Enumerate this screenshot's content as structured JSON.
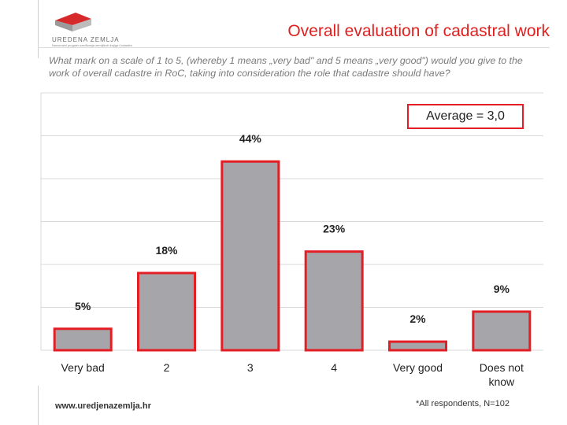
{
  "header": {
    "logo_alt": "UREDENA ZEMLJA",
    "logo_tagline": "Nacionalni program sređivanja zemljišnih knjiga i katastra",
    "title": "Overall evaluation of cadastral work"
  },
  "question": "What mark on a scale of 1 to 5, (whereby 1 means „very bad\" and 5 means „very good\") would you give to the work of overall cadastre in RoC, taking into consideration the role that cadastre should have?",
  "average_label": "Average = 3,0",
  "colors": {
    "bar_fill": "#a6a6aa",
    "bar_outline": "#e31e24",
    "title": "#e02020",
    "gridline": "#d9d9d9"
  },
  "chart_data": {
    "type": "bar",
    "categories": [
      "Very bad",
      "2",
      "3",
      "4",
      "Very good",
      "Does not know"
    ],
    "values": [
      5,
      18,
      44,
      23,
      2,
      9
    ],
    "value_labels": [
      "5%",
      "18%",
      "44%",
      "23%",
      "2%",
      "9%"
    ],
    "ylim": [
      0,
      60
    ],
    "unit": "%",
    "grid": true,
    "title": "",
    "xlabel": "",
    "ylabel": ""
  },
  "footer": {
    "website": "www.uredjenazemlja.hr",
    "note": "*All respondents, N=102"
  }
}
